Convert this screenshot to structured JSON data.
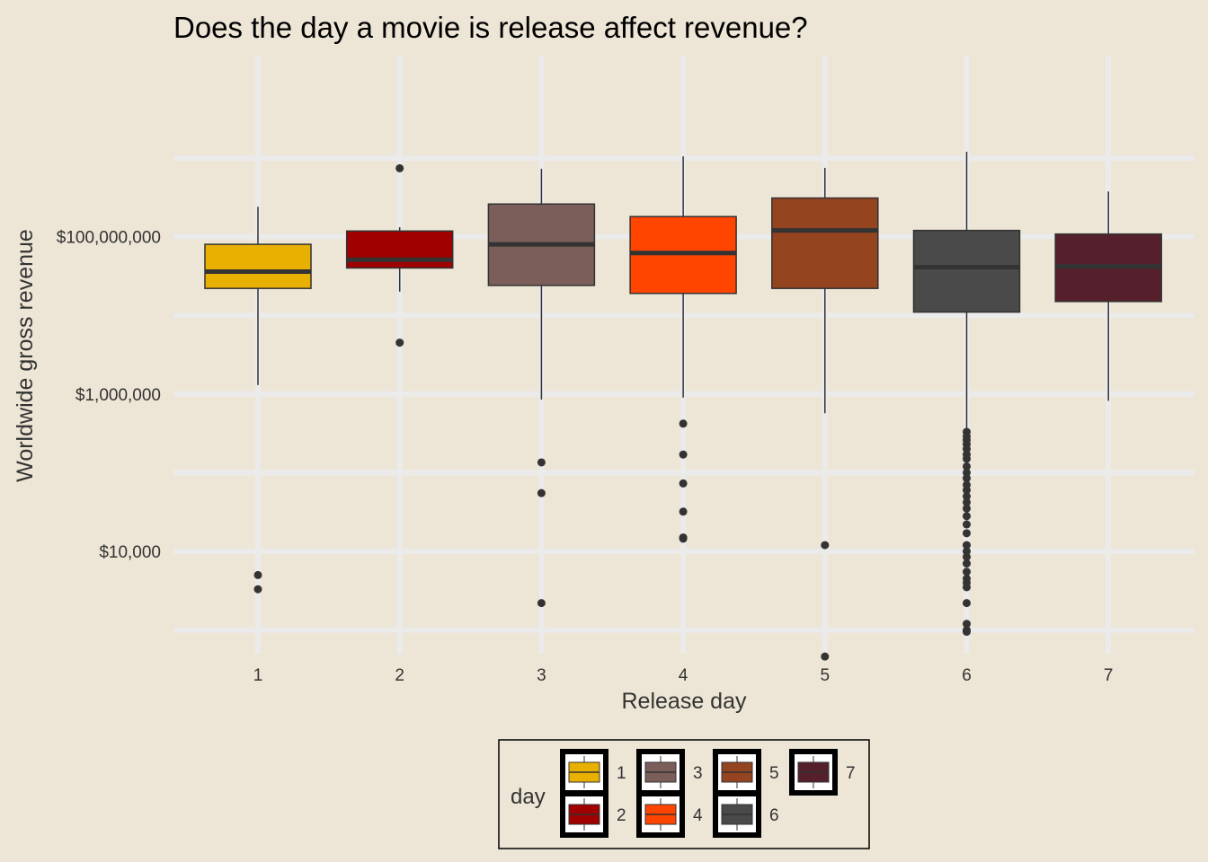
{
  "chart_data": {
    "type": "box",
    "title": "Does the day a movie is release affect revenue?",
    "xlabel": "Release day",
    "ylabel": "Worldwide gross revenue",
    "y_scale": "log10",
    "y_range": [
      500,
      20000000000
    ],
    "y_ticks": [
      {
        "value": 10000,
        "label": "$10,000"
      },
      {
        "value": 1000000,
        "label": "$1,000,000"
      },
      {
        "value": 100000000,
        "label": "$100,000,000"
      }
    ],
    "y_minor_gridlines": [
      1000,
      100000,
      10000000,
      1000000000
    ],
    "grid": true,
    "categories": [
      "1",
      "2",
      "3",
      "4",
      "5",
      "6",
      "7"
    ],
    "boxes": [
      {
        "day": "1",
        "color": "#e8b000",
        "whisker_low": 1300000,
        "q1": 22000000,
        "median": 36000000,
        "q3": 80000000,
        "whisker_high": 240000000,
        "outliers": [
          5000,
          3300
        ]
      },
      {
        "day": "2",
        "color": "#a00000",
        "whisker_low": 20000000,
        "q1": 40000000,
        "median": 51000000,
        "q3": 118000000,
        "whisker_high": 132000000,
        "outliers": [
          740000000,
          4500000
        ]
      },
      {
        "day": "3",
        "color": "#7b5e5a",
        "whisker_low": 850000,
        "q1": 24000000,
        "median": 80000000,
        "q3": 260000000,
        "whisker_high": 730000000,
        "outliers": [
          135000,
          55000,
          2200
        ]
      },
      {
        "day": "4",
        "color": "#ff4500",
        "whisker_low": 900000,
        "q1": 19000000,
        "median": 62000000,
        "q3": 180000000,
        "whisker_high": 1050000000,
        "outliers": [
          420000,
          170000,
          73000,
          32000,
          15000,
          14500
        ]
      },
      {
        "day": "5",
        "color": "#954420",
        "whisker_low": 570000,
        "q1": 22000000,
        "median": 120000000,
        "q3": 310000000,
        "whisker_high": 750000000,
        "outliers": [
          12000,
          460
        ]
      },
      {
        "day": "6",
        "color": "#4a4a4a",
        "whisker_low": 330000,
        "q1": 11000000,
        "median": 41000000,
        "q3": 120000000,
        "whisker_high": 1200000000,
        "outliers": [
          330000,
          290000,
          260000,
          230000,
          200000,
          170000,
          150000,
          120000,
          100000,
          85000,
          70000,
          60000,
          50000,
          42000,
          35000,
          28000,
          22000,
          17000,
          12000,
          10000,
          8500,
          7000,
          5500,
          4500,
          4000,
          3500,
          2200,
          1200,
          1000,
          950
        ]
      },
      {
        "day": "7",
        "color": "#55202b",
        "whisker_low": 820000,
        "q1": 15000000,
        "median": 42000000,
        "q3": 108000000,
        "whisker_high": 375000000,
        "outliers": []
      }
    ],
    "legend": {
      "title": "day",
      "position": "bottom",
      "items": [
        {
          "label": "1",
          "color": "#e8b000"
        },
        {
          "label": "2",
          "color": "#a00000"
        },
        {
          "label": "3",
          "color": "#7b5e5a"
        },
        {
          "label": "4",
          "color": "#ff4500"
        },
        {
          "label": "5",
          "color": "#954420"
        },
        {
          "label": "6",
          "color": "#4a4a4a"
        },
        {
          "label": "7",
          "color": "#55202b"
        }
      ]
    }
  },
  "theme": {
    "background": "#ede5d5",
    "grid_color": "#ebebeb",
    "box_outline": "#333333",
    "outlier_color": "#333333"
  }
}
